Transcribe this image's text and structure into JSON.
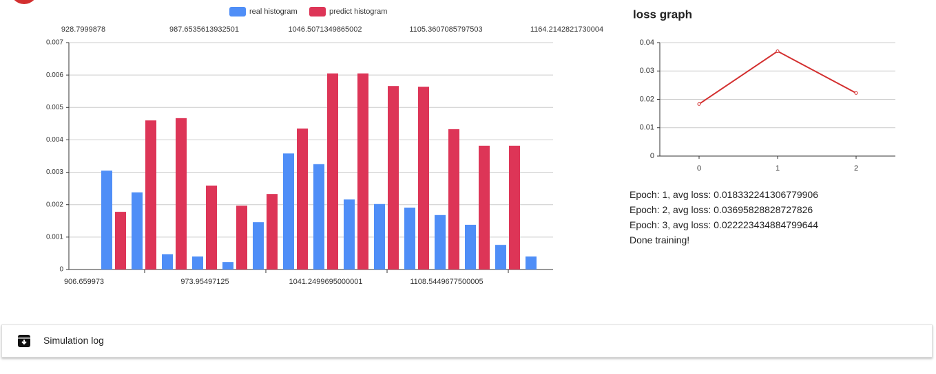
{
  "chart_data": [
    {
      "type": "bar",
      "series": [
        {
          "name": "real histogram",
          "color": "#4f8ef7",
          "values": [
            0.00305,
            0.00238,
            0.00047,
            0.0004,
            0.00023,
            0.00146,
            0.00358,
            0.00325,
            0.00216,
            0.00202,
            0.00191,
            0.00168,
            0.00138,
            0.00076,
            0.0004
          ]
        },
        {
          "name": "predict histogram",
          "color": "#dd3557",
          "values": [
            0.00178,
            0.0046,
            0.00467,
            0.00259,
            0.00197,
            0.00233,
            0.00435,
            0.00605,
            0.00605,
            0.00566,
            0.00564,
            0.00433,
            0.00382,
            0.00382,
            null
          ]
        }
      ],
      "x_top_labels": [
        "928.7999878",
        "987.6535613932501",
        "1046.5071349865002",
        "1105.3607085797503",
        "1164.2142821730004"
      ],
      "x_bottom_labels": [
        "906.659973",
        "973.95497125",
        "1041.2499695000001",
        "1108.5449677500005"
      ],
      "ylim": [
        0,
        0.007
      ],
      "yticks": [
        0,
        0.001,
        0.002,
        0.003,
        0.004,
        0.005,
        0.006,
        0.007
      ],
      "grid": true
    },
    {
      "type": "line",
      "title": "loss graph",
      "x": [
        0,
        1,
        2
      ],
      "xlim": [
        -0.5,
        2.5
      ],
      "xticks": [
        0,
        1,
        2
      ],
      "series": [
        {
          "color": "#d32f2f",
          "values": [
            0.018332241306779906,
            0.03695828828727826,
            0.022223434884799644
          ]
        }
      ],
      "ylim": [
        0,
        0.04
      ],
      "yticks": [
        0,
        0.01,
        0.02,
        0.03,
        0.04
      ],
      "grid": true
    }
  ],
  "log": [
    "Epoch: 1, avg loss: 0.018332241306779906",
    "Epoch: 2, avg loss: 0.03695828828727826",
    "Epoch: 3, avg loss: 0.022223434884799644",
    "Done training!"
  ],
  "panel": {
    "title": "Simulation log"
  }
}
